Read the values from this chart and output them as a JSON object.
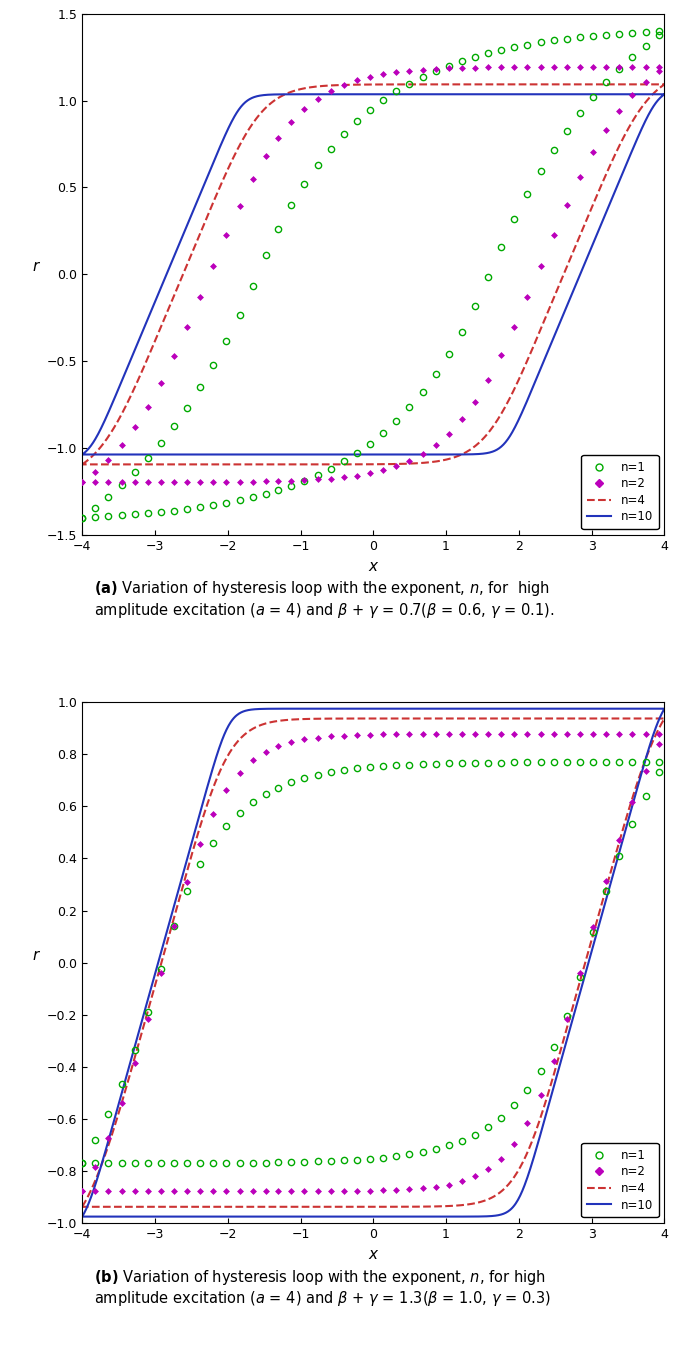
{
  "plot_a": {
    "beta": 0.6,
    "gamma": 0.1,
    "amplitude": 4.0,
    "n_values": [
      1,
      2,
      4,
      10
    ],
    "ylim": [
      -1.5,
      1.5
    ],
    "xlim": [
      -4,
      4
    ],
    "yticks": [
      -1.5,
      -1.0,
      -0.5,
      0.0,
      0.5,
      1.0,
      1.5
    ],
    "xticks": [
      -4,
      -3,
      -2,
      -1,
      0,
      1,
      2,
      3,
      4
    ],
    "ylabel": "r",
    "xlabel": "x",
    "legend_loc": "lower right"
  },
  "plot_b": {
    "beta": 1.0,
    "gamma": 0.3,
    "amplitude": 4.0,
    "n_values": [
      1,
      2,
      4,
      10
    ],
    "ylim": [
      -1.0,
      1.0
    ],
    "xlim": [
      -4,
      4
    ],
    "yticks": [
      -1.0,
      -0.8,
      -0.6,
      -0.4,
      -0.2,
      0.0,
      0.2,
      0.4,
      0.6,
      0.8,
      1.0
    ],
    "xticks": [
      -4,
      -3,
      -2,
      -1,
      0,
      1,
      2,
      3,
      4
    ],
    "ylabel": "r",
    "xlabel": "x",
    "legend_loc": "lower right"
  },
  "colors": {
    "n1": "#00AA00",
    "n2": "#BB00BB",
    "n4": "#CC3333",
    "n10": "#2233BB"
  },
  "figure_width": 6.85,
  "figure_height": 13.67
}
